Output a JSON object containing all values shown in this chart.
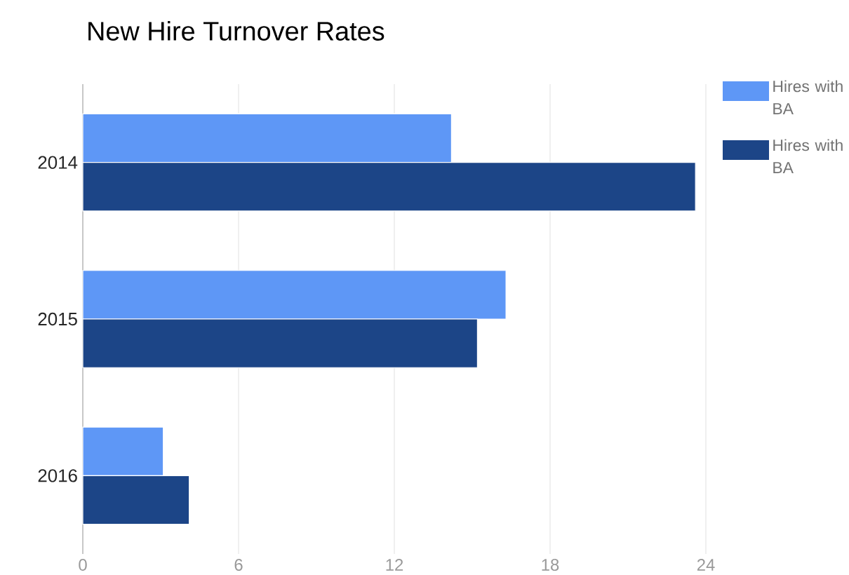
{
  "chart_data": {
    "type": "bar",
    "orientation": "horizontal",
    "title": "New Hire Turnover Rates",
    "categories": [
      "2014",
      "2015",
      "2016"
    ],
    "series": [
      {
        "name": "Hires with BA",
        "color": "#5e97f6",
        "values": [
          14.2,
          16.3,
          3.1
        ]
      },
      {
        "name": "Hires with BA",
        "color": "#1c4587",
        "values": [
          23.6,
          15.2,
          4.1
        ]
      }
    ],
    "xlim": [
      0,
      24
    ],
    "xticks": [
      0,
      6,
      12,
      18,
      24
    ],
    "grid": "x",
    "legend": "top right"
  }
}
